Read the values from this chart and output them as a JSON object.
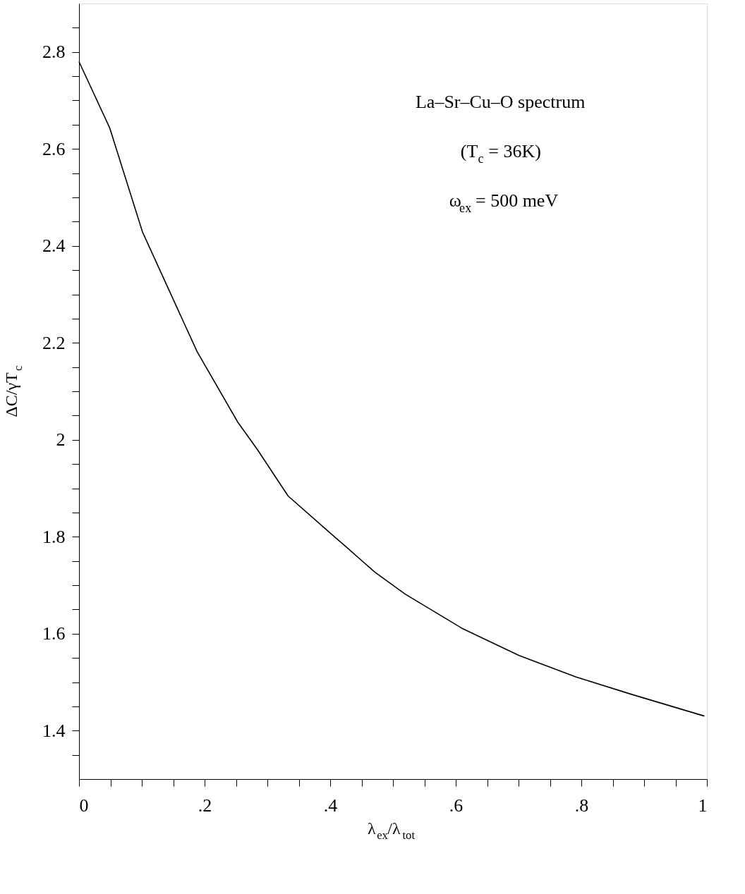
{
  "chart_data": {
    "type": "line",
    "xlabel": "λ$_{ex}$/λ$_{tot}$",
    "ylabel": "ΔC/γT$_{c}$",
    "annotations": [
      "La–Sr–Cu–O spectrum",
      "(T$_{c}$ = 36K)",
      "ω$_{ex}$ = 500 meV"
    ],
    "x": [
      0,
      0.049,
      0.101,
      0.188,
      0.253,
      0.284,
      0.333,
      0.397,
      0.429,
      0.471,
      0.519,
      0.61,
      0.701,
      0.791,
      0.882,
      0.996
    ],
    "series": [
      {
        "color": "#000000",
        "values": [
          2.78,
          2.643,
          2.429,
          2.182,
          2.036,
          1.98,
          1.884,
          1.811,
          1.775,
          1.727,
          1.682,
          1.611,
          1.555,
          1.511,
          1.474,
          1.43
        ]
      }
    ],
    "xlim": [
      0,
      1
    ],
    "ylim": [
      1.3,
      2.9
    ],
    "xticks": [
      0,
      {
        "value": 0.05,
        "label": null
      },
      {
        "value": 0.1,
        "label": null
      },
      {
        "value": 0.15,
        "label": null
      },
      {
        "value": 0.2,
        "label": ".2"
      },
      {
        "value": 0.25,
        "label": null
      },
      {
        "value": 0.3,
        "label": null
      },
      {
        "value": 0.35,
        "label": null
      },
      {
        "value": 0.4,
        "label": ".4"
      },
      {
        "value": 0.45,
        "label": null
      },
      {
        "value": 0.5,
        "label": null
      },
      {
        "value": 0.55,
        "label": null
      },
      {
        "value": 0.6,
        "label": ".6"
      },
      {
        "value": 0.65,
        "label": null
      },
      {
        "value": 0.7,
        "label": null
      },
      {
        "value": 0.75,
        "label": null
      },
      {
        "value": 0.8,
        "label": ".8"
      },
      {
        "value": 0.85,
        "label": null
      },
      {
        "value": 0.9,
        "label": null
      },
      {
        "value": 0.95,
        "label": null
      },
      1
    ],
    "yticks": [
      {
        "value": 1.35,
        "label": null
      },
      1.4,
      {
        "value": 1.45,
        "label": null
      },
      {
        "value": 1.5,
        "label": null
      },
      {
        "value": 1.55,
        "label": null
      },
      1.6,
      {
        "value": 1.65,
        "label": null
      },
      {
        "value": 1.7,
        "label": null
      },
      {
        "value": 1.75,
        "label": null
      },
      1.8,
      {
        "value": 1.85,
        "label": null
      },
      {
        "value": 1.9,
        "label": null
      },
      {
        "value": 1.95,
        "label": null
      },
      2,
      {
        "value": 2.05,
        "label": null
      },
      {
        "value": 2.1,
        "label": null
      },
      {
        "value": 2.15,
        "label": null
      },
      2.2,
      {
        "value": 2.25,
        "label": null
      },
      {
        "value": 2.3,
        "label": null
      },
      {
        "value": 2.35,
        "label": null
      },
      2.4,
      {
        "value": 2.45,
        "label": null
      },
      {
        "value": 2.5,
        "label": null
      },
      {
        "value": 2.55,
        "label": null
      },
      2.6,
      {
        "value": 2.65,
        "label": null
      },
      {
        "value": 2.7,
        "label": null
      },
      {
        "value": 2.75,
        "label": null
      },
      2.8,
      {
        "value": 2.85,
        "label": null
      }
    ],
    "grid": false,
    "legend": false,
    "marker": "none",
    "line_style": "solid"
  }
}
